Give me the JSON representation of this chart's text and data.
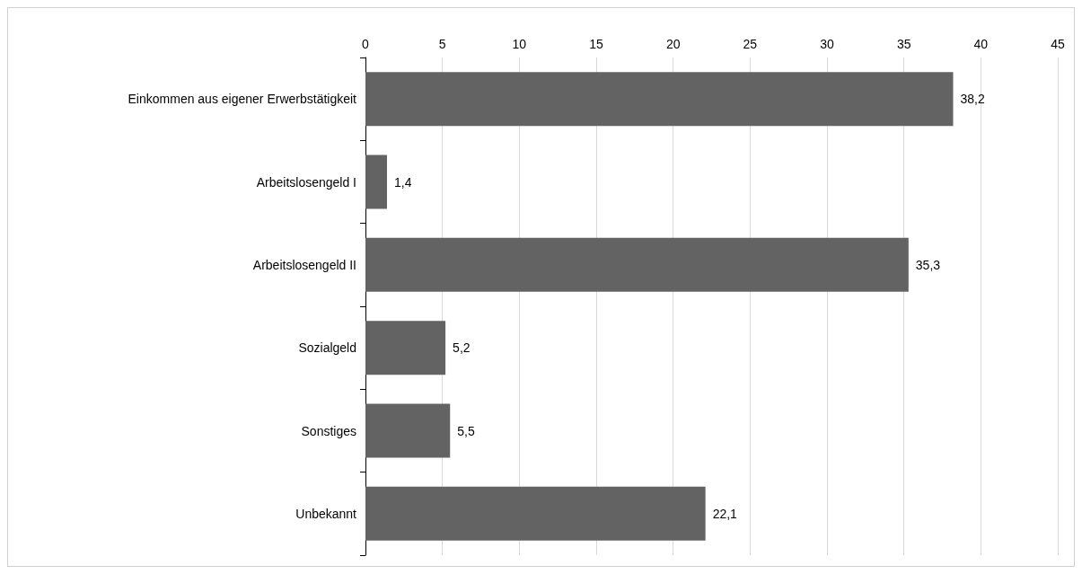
{
  "chart_data": {
    "type": "bar",
    "orientation": "horizontal",
    "categories": [
      "Einkommen aus eigener Erwerbstätigkeit",
      "Arbeitslosengeld I",
      "Arbeitslosengeld II",
      "Sozialgeld",
      "Sonstiges",
      "Unbekannt"
    ],
    "values": [
      38.2,
      1.4,
      35.3,
      5.2,
      5.5,
      22.1
    ],
    "value_labels": [
      "38,2",
      "1,4",
      "35,3",
      "5,2",
      "5,5",
      "22,1"
    ],
    "color": "#636363",
    "xlim": [
      0,
      45
    ],
    "xticks": [
      0,
      5,
      10,
      15,
      20,
      25,
      30,
      35,
      40,
      45
    ],
    "grid": "x"
  }
}
